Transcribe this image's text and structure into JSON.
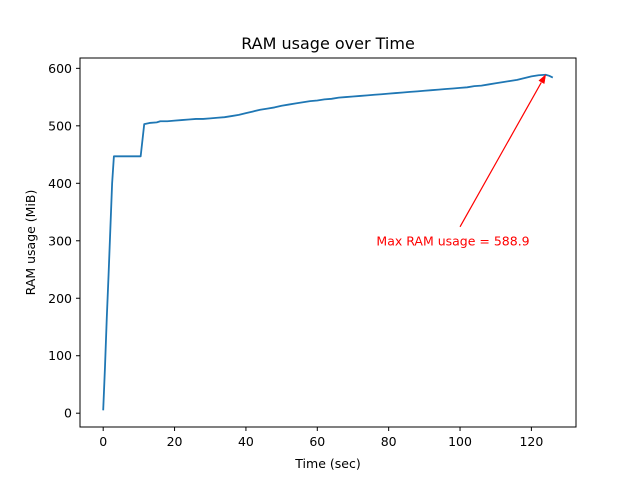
{
  "chart_data": {
    "type": "line",
    "title": "RAM usage over Time",
    "xlabel": "Time (sec)",
    "ylabel": "RAM usage (MiB)",
    "xlim": [
      -6.5,
      132.5
    ],
    "ylim": [
      -24,
      618
    ],
    "xticks": [
      0,
      20,
      40,
      60,
      80,
      100,
      120
    ],
    "yticks": [
      0,
      100,
      200,
      300,
      400,
      500,
      600
    ],
    "grid": false,
    "series": [
      {
        "color": "#1f77b4",
        "x": [
          0,
          0.5,
          1,
          1.5,
          2,
          2.5,
          3,
          5,
          7,
          9,
          10.5,
          11.5,
          13,
          15,
          16,
          17,
          18,
          20,
          22,
          24,
          26,
          28,
          30,
          32,
          34,
          36,
          38,
          40,
          42,
          44,
          46,
          48,
          50,
          52,
          54,
          56,
          58,
          60,
          62,
          64,
          66,
          68,
          70,
          72,
          74,
          76,
          78,
          80,
          82,
          84,
          86,
          88,
          90,
          92,
          94,
          96,
          98,
          100,
          102,
          104,
          106,
          108,
          110,
          112,
          114,
          116,
          118,
          120,
          122,
          124,
          125,
          126
        ],
        "y": [
          5,
          80,
          165,
          240,
          320,
          400,
          447,
          447,
          447,
          447,
          447,
          503,
          505,
          506,
          508,
          508,
          508,
          509,
          510,
          511,
          512,
          512,
          513,
          514,
          515,
          517,
          519,
          522,
          525,
          528,
          530,
          532,
          535,
          537,
          539,
          541,
          543,
          544,
          546,
          547,
          549,
          550,
          551,
          552,
          553,
          554,
          555,
          556,
          557,
          558,
          559,
          560,
          561,
          562,
          563,
          564,
          565,
          566,
          567,
          569,
          570,
          572,
          574,
          576,
          578,
          580,
          583,
          586,
          588,
          588.9,
          587,
          584
        ]
      }
    ],
    "annotation": {
      "text": "Max RAM usage = 588.9",
      "color": "#ff0000",
      "point": [
        124,
        588.9
      ],
      "text_position": [
        100,
        300
      ]
    }
  }
}
